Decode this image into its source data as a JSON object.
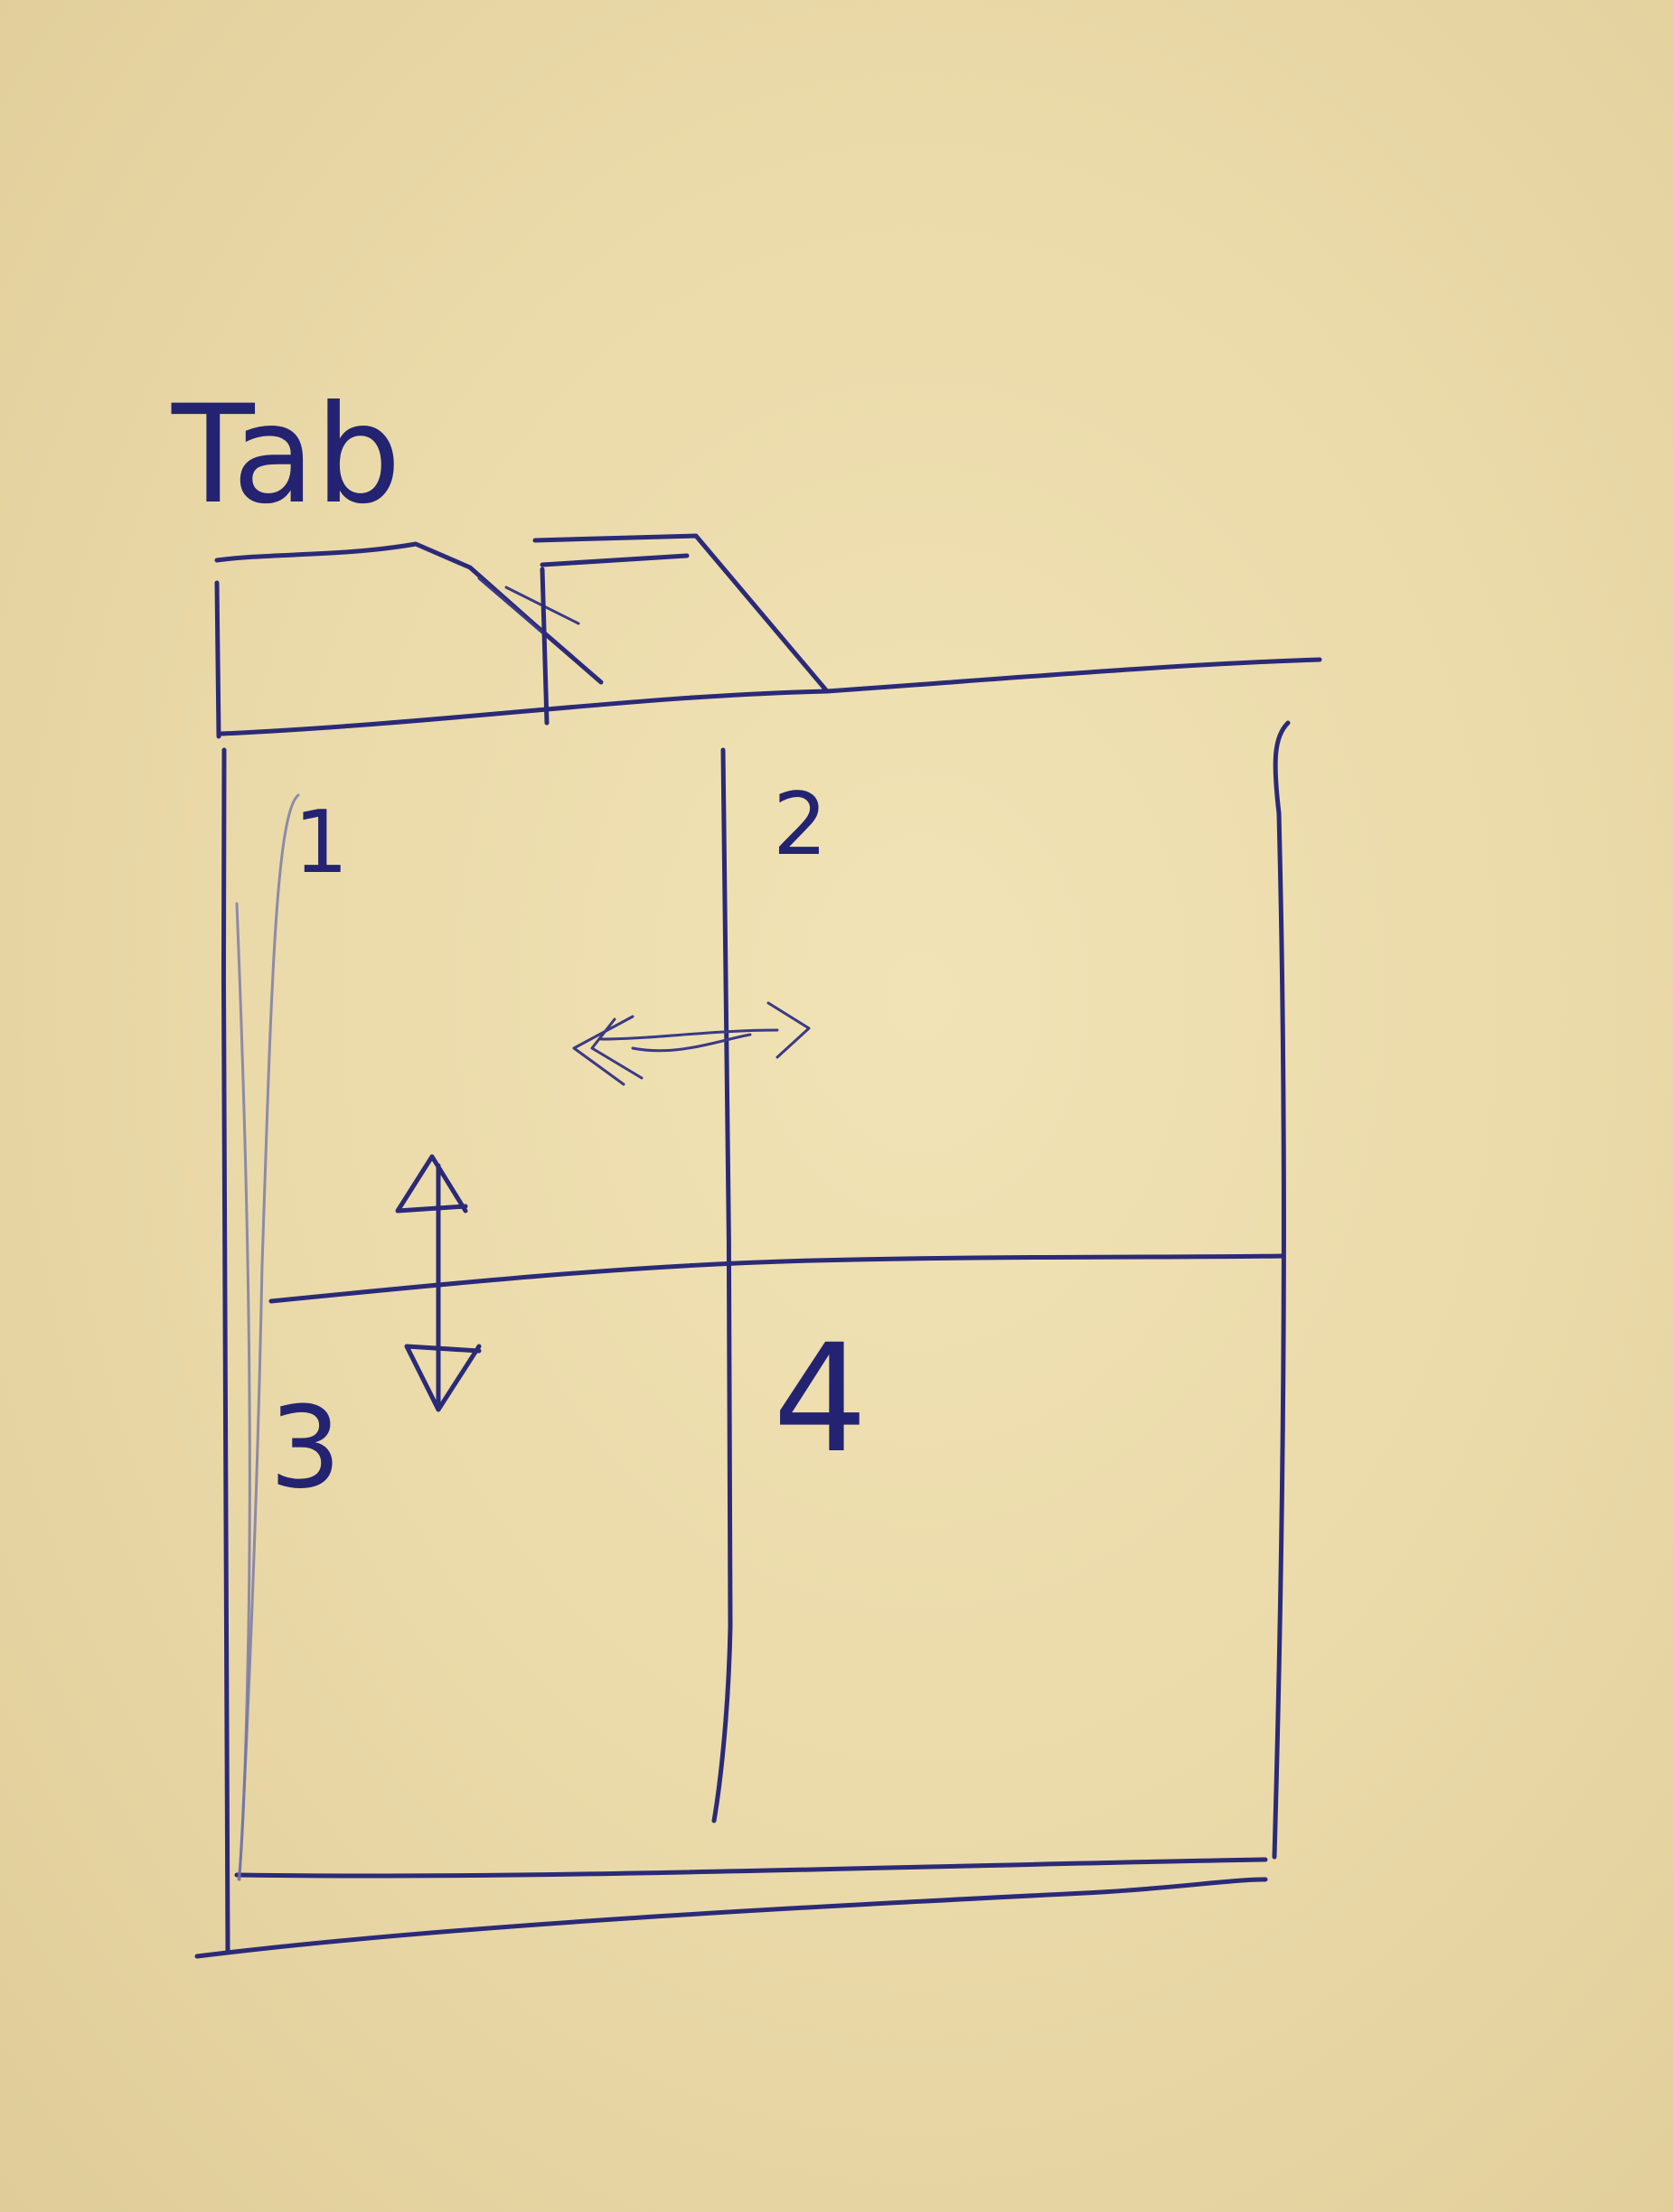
{
  "tab_label": "Tab",
  "panes": [
    {
      "label": "1"
    },
    {
      "label": "2"
    },
    {
      "label": "3"
    },
    {
      "label": "4"
    }
  ],
  "resize_handles": [
    {
      "icon": "double-arrow-horizontal-icon",
      "direction": "horizontal"
    },
    {
      "icon": "double-arrow-vertical-icon",
      "direction": "vertical"
    }
  ],
  "colors": {
    "paper": "#ead9a8",
    "ink": "#2b2a78"
  }
}
